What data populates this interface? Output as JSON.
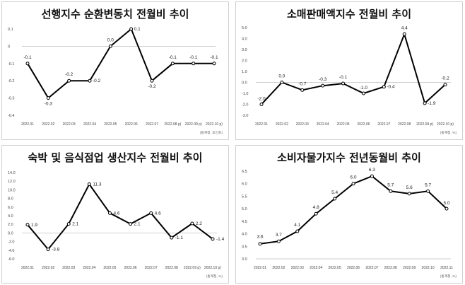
{
  "chart_data": [
    {
      "type": "line",
      "title": "선행지수 순환변동치 전월비 추이",
      "categories": [
        "2022.01",
        "2022.02",
        "2022.03",
        "2022.04",
        "2022.05",
        "2022.06",
        "2022.07",
        "2022.08 p)",
        "2022.09 p)",
        "2022.10 p)"
      ],
      "values": [
        -0.1,
        -0.3,
        -0.2,
        -0.2,
        0.0,
        0.1,
        -0.2,
        -0.1,
        -0.1,
        -0.1
      ],
      "value_labels": [
        "-0.1",
        "-0.3",
        "-0.2",
        "-0.2",
        "0.0",
        "0.1",
        "-0.2",
        "-0.1",
        "-0.1",
        "-0.1"
      ],
      "ylim": [
        -0.4,
        0.1
      ],
      "yticks": [
        "0.1",
        "0",
        "-0.1",
        "-0.2",
        "-0.3",
        "-0.4"
      ],
      "ytick_values": [
        0.1,
        0,
        -0.1,
        -0.2,
        -0.3,
        -0.4
      ],
      "source": "(통계청, 포인트)",
      "xlabel": "",
      "ylabel": ""
    },
    {
      "type": "line",
      "title": "소매판매액지수 전월비 추이",
      "categories": [
        "2022.01",
        "2022.02",
        "2022.03",
        "2022.04",
        "2022.05",
        "2022.06",
        "2022.07",
        "2022.08",
        "2022.09 p)",
        "2022.10 p)"
      ],
      "values": [
        -2.0,
        0.0,
        -0.7,
        -0.3,
        -0.1,
        -1.0,
        -0.4,
        4.4,
        -1.9,
        -0.2
      ],
      "value_labels": [
        "-2.0",
        "0.0",
        "-0.7",
        "-0.3",
        "-0.1",
        "-1.0",
        "-0.4",
        "4.4",
        "-1.9",
        "-0.2"
      ],
      "ylim": [
        -3.0,
        5.0
      ],
      "yticks": [
        "5.0",
        "4.0",
        "3.0",
        "2.0",
        "1.0",
        "0.0",
        "-1.0",
        "-2.0",
        "-3.0"
      ],
      "ytick_values": [
        5,
        4,
        3,
        2,
        1,
        0,
        -1,
        -2,
        -3
      ],
      "source": "(통계청, %)",
      "xlabel": "",
      "ylabel": ""
    },
    {
      "type": "line",
      "title": "숙박 및 음식점업 생산지수 전월비 추이",
      "categories": [
        "2022.01",
        "2022.02",
        "2022.03",
        "2022.04",
        "2022.05",
        "2022.06",
        "2022.07",
        "2022.08",
        "2022.09 p)",
        "2022.10 p)"
      ],
      "values": [
        1.9,
        -3.8,
        2.1,
        11.3,
        4.6,
        2.1,
        4.6,
        -1.1,
        2.2,
        -1.4
      ],
      "value_labels": [
        "1.9",
        "-3.8",
        "2.1",
        "11.3",
        "4.6",
        "2.1",
        "4.6",
        "-1.1",
        "2.2",
        "-1.4"
      ],
      "ylim": [
        -6.0,
        14.0
      ],
      "yticks": [
        "14.0",
        "12.0",
        "10.0",
        "8.0",
        "6.0",
        "4.0",
        "2.0",
        "0.0",
        "-2.0",
        "-4.0",
        "-6.0"
      ],
      "ytick_values": [
        14,
        12,
        10,
        8,
        6,
        4,
        2,
        0,
        -2,
        -4,
        -6
      ],
      "source": "(통계청, %)",
      "xlabel": "",
      "ylabel": ""
    },
    {
      "type": "line",
      "title": "소비자물가지수 전년동월비 추이",
      "categories": [
        "2022.01",
        "2022.02",
        "2022.03",
        "2022.04",
        "2022.05",
        "2022.06",
        "2022.07",
        "2022.08",
        "2022.09",
        "2022.10",
        "2022.11"
      ],
      "values": [
        3.6,
        3.7,
        4.1,
        4.8,
        5.4,
        6.0,
        6.3,
        5.7,
        5.6,
        5.7,
        5.0
      ],
      "value_labels": [
        "3.6",
        "3.7",
        "4.1",
        "4.8",
        "5.4",
        "6.0",
        "6.3",
        "5.7",
        "5.6",
        "5.7",
        "5.0"
      ],
      "ylim": [
        3.0,
        6.5
      ],
      "yticks": [
        "6.5",
        "6.0",
        "5.5",
        "5.0",
        "4.5",
        "4.0",
        "3.5",
        "3.0"
      ],
      "ytick_values": [
        6.5,
        6.0,
        5.5,
        5.0,
        4.5,
        4.0,
        3.5,
        3.0
      ],
      "source": "(통계청, %)",
      "xlabel": "",
      "ylabel": ""
    }
  ]
}
